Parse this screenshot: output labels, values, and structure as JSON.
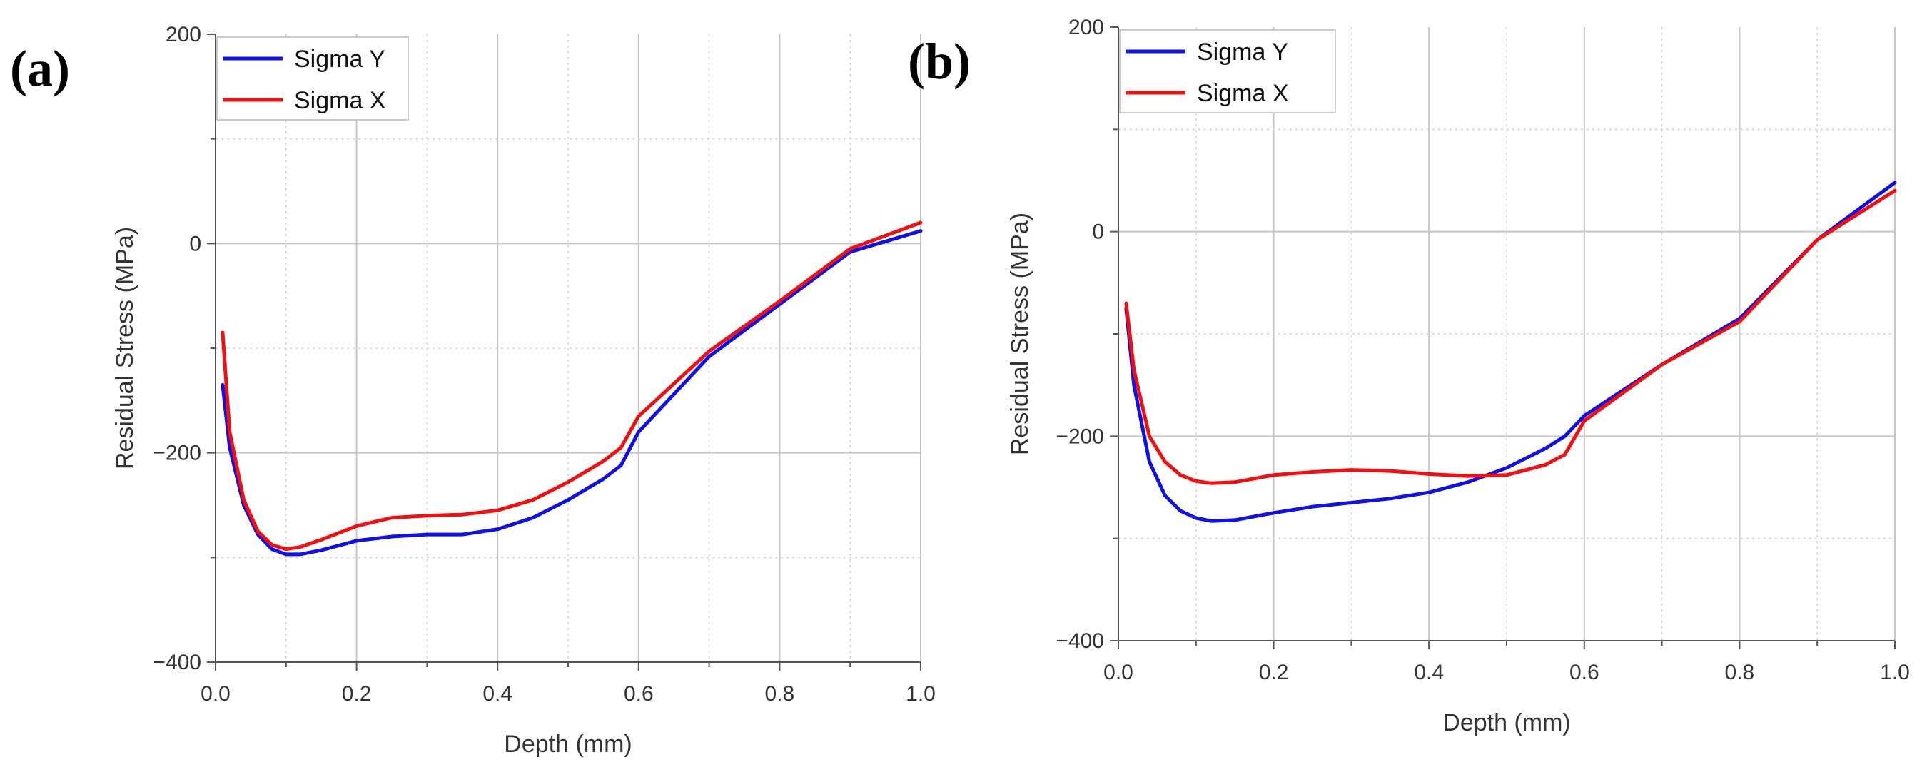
{
  "figure": {
    "panels": [
      "(a)",
      "(b)"
    ]
  },
  "chart_data": [
    {
      "type": "line",
      "panel_label": "(a)",
      "title": "",
      "xlabel": "Depth (mm)",
      "ylabel": "Residual Stress (MPa)",
      "xlim": [
        0.0,
        1.0
      ],
      "ylim": [
        -400,
        200
      ],
      "xticks": [
        "0.0",
        "0.2",
        "0.4",
        "0.6",
        "0.8",
        "1.0"
      ],
      "yticks": [
        "200",
        "0",
        "−200",
        "−400"
      ],
      "grid": true,
      "legend_position": "top-left",
      "series": [
        {
          "name": "Sigma Y",
          "color": "#1010e8",
          "x": [
            0.01,
            0.02,
            0.04,
            0.06,
            0.08,
            0.1,
            0.12,
            0.15,
            0.2,
            0.25,
            0.3,
            0.35,
            0.4,
            0.45,
            0.5,
            0.55,
            0.575,
            0.6,
            0.7,
            0.8,
            0.9,
            1.0
          ],
          "values": [
            -135,
            -195,
            -250,
            -278,
            -292,
            -297,
            -297,
            -293,
            -284,
            -280,
            -278,
            -278,
            -273,
            -262,
            -245,
            -225,
            -212,
            -180,
            -108,
            -58,
            -8,
            12
          ]
        },
        {
          "name": "Sigma X",
          "color": "#f01010",
          "x": [
            0.01,
            0.02,
            0.04,
            0.06,
            0.08,
            0.1,
            0.12,
            0.15,
            0.2,
            0.25,
            0.3,
            0.35,
            0.4,
            0.45,
            0.5,
            0.55,
            0.575,
            0.6,
            0.7,
            0.8,
            0.9,
            1.0
          ],
          "values": [
            -85,
            -180,
            -245,
            -275,
            -288,
            -292,
            -290,
            -283,
            -270,
            -262,
            -260,
            -259,
            -255,
            -245,
            -228,
            -208,
            -195,
            -165,
            -103,
            -55,
            -5,
            20
          ]
        }
      ]
    },
    {
      "type": "line",
      "panel_label": "(b)",
      "title": "",
      "xlabel": "Depth (mm)",
      "ylabel": "Residual Stress (MPa)",
      "xlim": [
        0.0,
        1.0
      ],
      "ylim": [
        -400,
        200
      ],
      "xticks": [
        "0.0",
        "0.2",
        "0.4",
        "0.6",
        "0.8",
        "1.0"
      ],
      "yticks": [
        "200",
        "0",
        "−200",
        "−400"
      ],
      "grid": true,
      "legend_position": "top-left",
      "series": [
        {
          "name": "Sigma Y",
          "color": "#1010e8",
          "x": [
            0.01,
            0.02,
            0.04,
            0.06,
            0.08,
            0.1,
            0.12,
            0.15,
            0.2,
            0.25,
            0.3,
            0.35,
            0.4,
            0.45,
            0.5,
            0.55,
            0.575,
            0.6,
            0.7,
            0.8,
            0.9,
            1.0
          ],
          "values": [
            -75,
            -150,
            -225,
            -258,
            -273,
            -280,
            -283,
            -282,
            -275,
            -269,
            -265,
            -261,
            -255,
            -245,
            -231,
            -212,
            -200,
            -180,
            -130,
            -85,
            -8,
            48
          ]
        },
        {
          "name": "Sigma X",
          "color": "#f01010",
          "x": [
            0.01,
            0.02,
            0.04,
            0.06,
            0.08,
            0.1,
            0.12,
            0.15,
            0.2,
            0.25,
            0.3,
            0.35,
            0.4,
            0.45,
            0.5,
            0.55,
            0.575,
            0.6,
            0.7,
            0.8,
            0.9,
            1.0
          ],
          "values": [
            -70,
            -135,
            -200,
            -225,
            -238,
            -244,
            -246,
            -245,
            -238,
            -235,
            -233,
            -234,
            -237,
            -239,
            -238,
            -228,
            -218,
            -185,
            -130,
            -88,
            -8,
            40
          ]
        }
      ]
    }
  ]
}
